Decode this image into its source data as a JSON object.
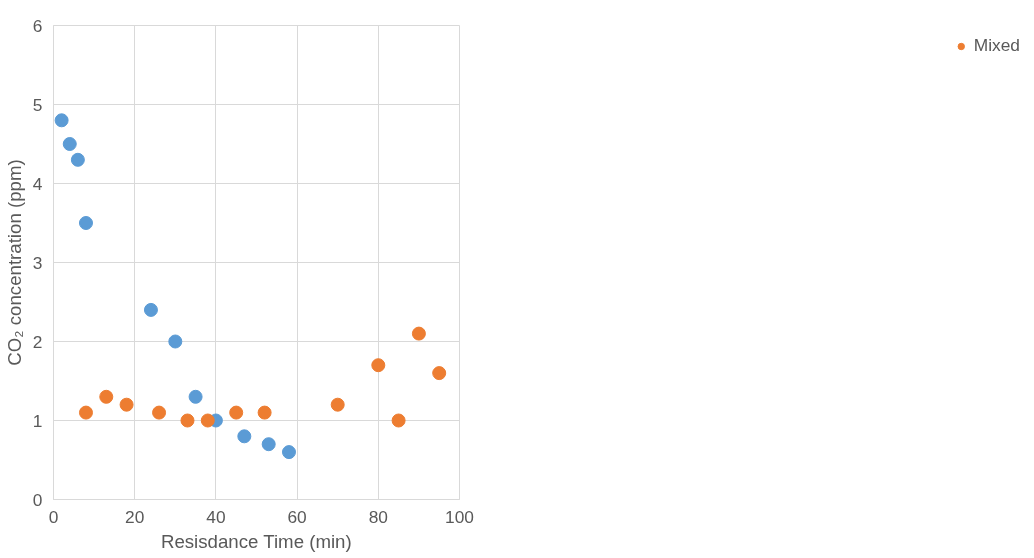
{
  "chart_data": {
    "type": "scatter",
    "xlabel": "Resisdance Time (min)",
    "ylabel": "CO₂ concentration (ppm)",
    "xlim": [
      0,
      100
    ],
    "ylim": [
      0,
      6
    ],
    "xticks": [
      0,
      20,
      40,
      60,
      80,
      100
    ],
    "yticks": [
      0,
      1,
      2,
      3,
      4,
      5,
      6
    ],
    "grid": true,
    "legend": "right",
    "marker": "circle",
    "series": [
      {
        "color": "#5b9bd5",
        "x": [
          2,
          4,
          6,
          8,
          24,
          30,
          35,
          40,
          47,
          53,
          58
        ],
        "values": [
          4.8,
          4.5,
          4.3,
          3.5,
          2.4,
          2.0,
          1.3,
          1.0,
          0.8,
          0.7,
          0.6
        ]
      },
      {
        "name": "Mixed",
        "color": "#ed7d31",
        "x": [
          8,
          13,
          18,
          26,
          33,
          38,
          45,
          52,
          70,
          80,
          85,
          90,
          95
        ],
        "values": [
          1.1,
          1.3,
          1.2,
          1.1,
          1.0,
          1.0,
          1.1,
          1.1,
          1.2,
          1.7,
          1.0,
          2.1,
          1.6
        ]
      }
    ]
  }
}
